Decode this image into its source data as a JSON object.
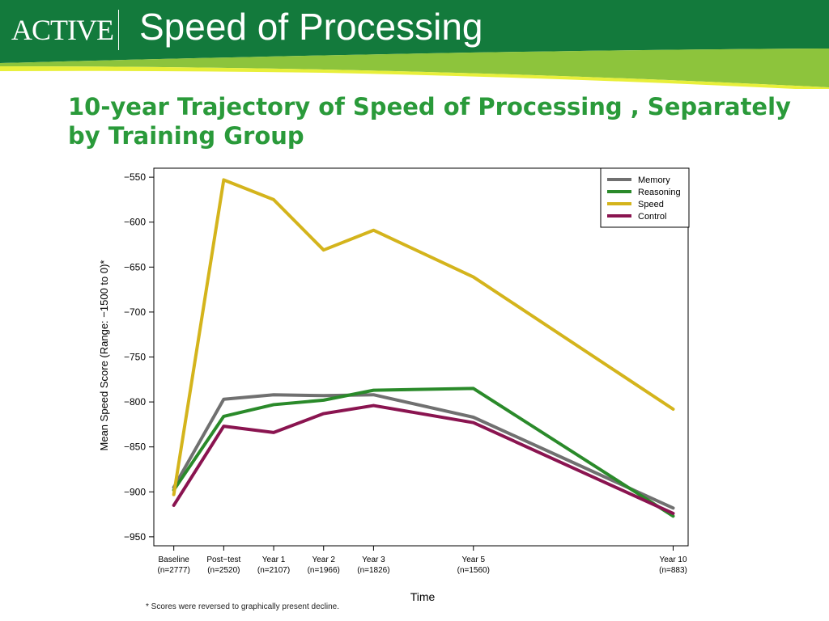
{
  "header": {
    "logo_text": "ACTIVE",
    "title": "Speed of Processing"
  },
  "subtitle": "10-year Trajectory of Speed of Processing , Separately by Training Group",
  "footnote": "* Scores were reversed to graphically present decline.",
  "colors": {
    "header_green": "#137a3c",
    "stripe_light": "#8dc43c",
    "stripe_yellow": "#e8ef3a",
    "subtitle": "#2a9a3a"
  },
  "chart_data": {
    "type": "line",
    "xlabel": "Time",
    "ylabel": "Mean Speed Score (Range: −1500 to 0)*",
    "ylim": [
      -960,
      -540
    ],
    "yticks": [
      -550,
      -600,
      -650,
      -700,
      -750,
      -800,
      -850,
      -900,
      -950
    ],
    "ytick_labels": [
      "−550",
      "−600",
      "−650",
      "−700",
      "−750",
      "−800",
      "−850",
      "−900",
      "−950"
    ],
    "x_positions": [
      0,
      0.5,
      1,
      1.5,
      2,
      3,
      5
    ],
    "x_labels": [
      [
        "Baseline",
        "(n=2777)"
      ],
      [
        "Post−test",
        "(n=2520)"
      ],
      [
        "Year 1",
        "(n=2107)"
      ],
      [
        "Year 2",
        "(n=1966)"
      ],
      [
        "Year 3",
        "(n=1826)"
      ],
      [
        "Year 5",
        "(n=1560)"
      ],
      [
        "Year 10",
        "(n=883)"
      ]
    ],
    "legend_position": "top-right",
    "grid": false,
    "series": [
      {
        "name": "Memory",
        "color": "#707070",
        "values": [
          -895,
          -797,
          -792,
          -793,
          -792,
          -817,
          -918
        ]
      },
      {
        "name": "Reasoning",
        "color": "#2a8a2a",
        "values": [
          -898,
          -816,
          -803,
          -798,
          -787,
          -785,
          -927
        ]
      },
      {
        "name": "Speed",
        "color": "#d4b41c",
        "values": [
          -903,
          -553,
          -575,
          -631,
          -609,
          -661,
          -808
        ]
      },
      {
        "name": "Control",
        "color": "#8a1450",
        "values": [
          -915,
          -827,
          -834,
          -813,
          -804,
          -823,
          -924
        ]
      }
    ]
  }
}
